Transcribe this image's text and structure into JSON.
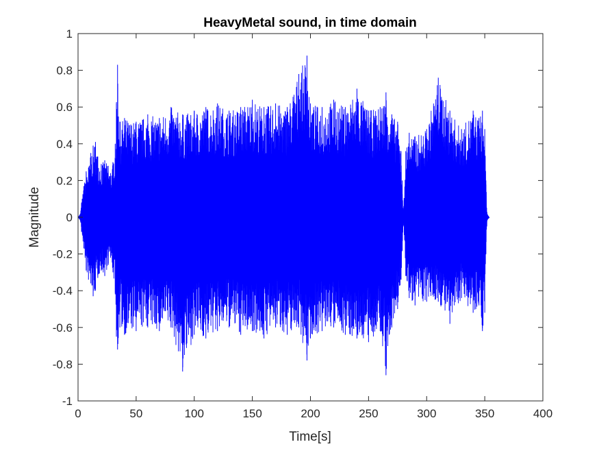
{
  "chart_data": {
    "type": "line",
    "title": "HeavyMetal sound, in time domain",
    "xlabel": "Time[s]",
    "ylabel": "Magnitude",
    "xlim": [
      0,
      400
    ],
    "ylim": [
      -1,
      1
    ],
    "xticks": [
      0,
      50,
      100,
      150,
      200,
      250,
      300,
      350,
      400
    ],
    "yticks": [
      -1,
      -0.8,
      -0.6,
      -0.4,
      -0.2,
      0,
      0.2,
      0.4,
      0.6,
      0.8,
      1
    ],
    "xtick_labels": [
      "0",
      "50",
      "100",
      "150",
      "200",
      "250",
      "300",
      "350",
      "400"
    ],
    "ytick_labels": [
      "-1",
      "-0.8",
      "-0.6",
      "-0.4",
      "-0.2",
      "0",
      "0.2",
      "0.4",
      "0.6",
      "0.8",
      "1"
    ],
    "grid": false,
    "series": [
      {
        "color": "#0000ff",
        "envelope": {
          "x": [
            0,
            2,
            3,
            5,
            7,
            9,
            11,
            13,
            15,
            17,
            20,
            23,
            26,
            28,
            30,
            32,
            33,
            34,
            36,
            40,
            50,
            60,
            70,
            80,
            90,
            100,
            110,
            120,
            130,
            140,
            150,
            160,
            170,
            180,
            190,
            197,
            200,
            210,
            220,
            230,
            240,
            250,
            260,
            265,
            270,
            275,
            278,
            279,
            280,
            282,
            285,
            290,
            300,
            310,
            320,
            330,
            340,
            345,
            348,
            350,
            351,
            352,
            354
          ],
          "max": [
            0,
            0.02,
            0.08,
            0.17,
            0.25,
            0.27,
            0.35,
            0.39,
            0.41,
            0.33,
            0.29,
            0.31,
            0.28,
            0.24,
            0.3,
            0.4,
            0.62,
            0.83,
            0.52,
            0.54,
            0.52,
            0.56,
            0.54,
            0.6,
            0.56,
            0.58,
            0.6,
            0.62,
            0.58,
            0.6,
            0.64,
            0.6,
            0.62,
            0.6,
            0.78,
            0.88,
            0.62,
            0.6,
            0.64,
            0.6,
            0.7,
            0.58,
            0.6,
            0.68,
            0.56,
            0.52,
            0.36,
            0.2,
            0.02,
            0.36,
            0.46,
            0.44,
            0.48,
            0.76,
            0.58,
            0.48,
            0.58,
            0.54,
            0.58,
            0.48,
            0.2,
            0.02,
            0
          ],
          "min": [
            0,
            -0.02,
            -0.08,
            -0.17,
            -0.29,
            -0.34,
            -0.36,
            -0.43,
            -0.4,
            -0.33,
            -0.29,
            -0.32,
            -0.26,
            -0.22,
            -0.3,
            -0.42,
            -0.65,
            -0.72,
            -0.6,
            -0.64,
            -0.62,
            -0.6,
            -0.62,
            -0.6,
            -0.84,
            -0.64,
            -0.66,
            -0.62,
            -0.6,
            -0.64,
            -0.62,
            -0.66,
            -0.6,
            -0.64,
            -0.6,
            -0.78,
            -0.66,
            -0.62,
            -0.6,
            -0.64,
            -0.66,
            -0.68,
            -0.62,
            -0.86,
            -0.6,
            -0.5,
            -0.34,
            -0.18,
            -0.02,
            -0.32,
            -0.44,
            -0.48,
            -0.46,
            -0.46,
            -0.58,
            -0.44,
            -0.52,
            -0.48,
            -0.62,
            -0.52,
            -0.2,
            -0.02,
            0
          ]
        }
      }
    ]
  }
}
